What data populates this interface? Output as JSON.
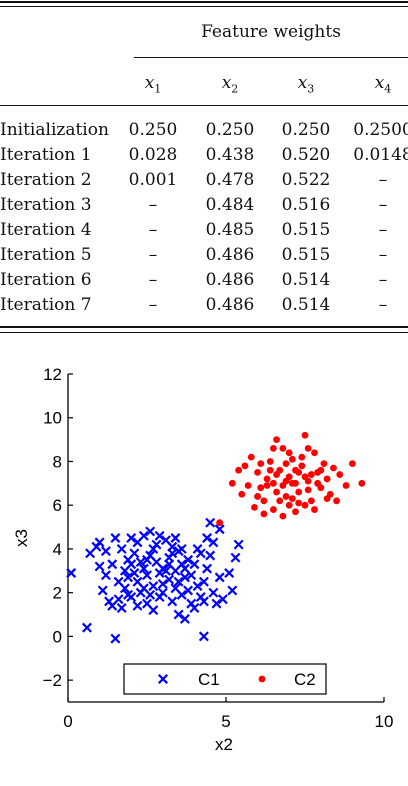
{
  "table": {
    "group_header": "Feature weights",
    "columns": [
      "x1",
      "x2",
      "x3",
      "x4"
    ],
    "rows": [
      {
        "label": "Initialization",
        "values": [
          "0.250",
          "0.250",
          "0.250",
          "0.2500"
        ]
      },
      {
        "label": "Iteration 1",
        "values": [
          "0.028",
          "0.438",
          "0.520",
          "0.0148"
        ]
      },
      {
        "label": "Iteration 2",
        "values": [
          "0.001",
          "0.478",
          "0.522",
          "–"
        ]
      },
      {
        "label": "Iteration 3",
        "values": [
          "–",
          "0.484",
          "0.516",
          "–"
        ]
      },
      {
        "label": "Iteration 4",
        "values": [
          "–",
          "0.485",
          "0.515",
          "–"
        ]
      },
      {
        "label": "Iteration 5",
        "values": [
          "–",
          "0.486",
          "0.515",
          "–"
        ]
      },
      {
        "label": "Iteration 6",
        "values": [
          "–",
          "0.486",
          "0.514",
          "–"
        ]
      },
      {
        "label": "Iteration 7",
        "values": [
          "–",
          "0.486",
          "0.514",
          "–"
        ]
      }
    ]
  },
  "chart_data": {
    "type": "scatter",
    "xlabel": "x2",
    "ylabel": "x3",
    "xlim": [
      0,
      10
    ],
    "ylim": [
      -3,
      12
    ],
    "xticks": [
      0,
      5,
      10
    ],
    "yticks": [
      -2,
      0,
      2,
      4,
      6,
      8,
      10,
      12
    ],
    "legend_placement": "bottom-center",
    "series": [
      {
        "name": "C1",
        "marker": "x",
        "color": "#0000ff",
        "points": [
          [
            0.1,
            2.9
          ],
          [
            0.6,
            0.4
          ],
          [
            1.5,
            -0.1
          ],
          [
            4.3,
            0.0
          ],
          [
            0.7,
            3.8
          ],
          [
            0.9,
            4.1
          ],
          [
            1.0,
            3.2
          ],
          [
            1.2,
            2.8
          ],
          [
            1.1,
            2.1
          ],
          [
            1.3,
            1.6
          ],
          [
            1.4,
            1.4
          ],
          [
            1.6,
            1.7
          ],
          [
            1.8,
            2.2
          ],
          [
            1.9,
            2.7
          ],
          [
            2.0,
            3.3
          ],
          [
            2.1,
            3.8
          ],
          [
            2.2,
            4.3
          ],
          [
            2.4,
            4.6
          ],
          [
            2.6,
            4.8
          ],
          [
            2.3,
            2.0
          ],
          [
            2.5,
            1.5
          ],
          [
            2.7,
            1.2
          ],
          [
            2.9,
            1.8
          ],
          [
            3.0,
            2.4
          ],
          [
            3.1,
            3.0
          ],
          [
            3.2,
            3.6
          ],
          [
            3.3,
            4.1
          ],
          [
            3.4,
            4.5
          ],
          [
            3.5,
            3.9
          ],
          [
            3.6,
            3.3
          ],
          [
            3.7,
            2.7
          ],
          [
            3.8,
            2.1
          ],
          [
            3.9,
            1.5
          ],
          [
            3.7,
            0.8
          ],
          [
            3.5,
            1.0
          ],
          [
            4.0,
            1.3
          ],
          [
            4.2,
            1.8
          ],
          [
            4.3,
            2.5
          ],
          [
            4.4,
            3.1
          ],
          [
            4.5,
            3.7
          ],
          [
            4.6,
            4.3
          ],
          [
            4.5,
            5.2
          ],
          [
            4.8,
            4.9
          ],
          [
            5.4,
            4.2
          ],
          [
            5.3,
            3.6
          ],
          [
            5.1,
            2.9
          ],
          [
            5.2,
            2.1
          ],
          [
            4.9,
            1.7
          ],
          [
            4.7,
            1.5
          ],
          [
            1.5,
            4.5
          ],
          [
            1.7,
            4.0
          ],
          [
            1.9,
            3.5
          ],
          [
            2.0,
            1.8
          ],
          [
            2.2,
            2.5
          ],
          [
            2.4,
            3.1
          ],
          [
            2.6,
            3.7
          ],
          [
            2.8,
            4.2
          ],
          [
            3.0,
            3.1
          ],
          [
            3.2,
            2.6
          ],
          [
            3.4,
            2.2
          ],
          [
            3.6,
            1.9
          ],
          [
            2.9,
            2.9
          ],
          [
            2.7,
            2.3
          ],
          [
            2.5,
            2.8
          ],
          [
            2.3,
            3.4
          ],
          [
            2.1,
            2.9
          ],
          [
            1.8,
            3.0
          ],
          [
            1.6,
            2.5
          ],
          [
            1.4,
            3.3
          ],
          [
            1.2,
            3.9
          ],
          [
            1.0,
            4.3
          ],
          [
            2.0,
            4.5
          ],
          [
            2.8,
            3.4
          ],
          [
            3.1,
            4.4
          ],
          [
            3.3,
            1.6
          ],
          [
            3.8,
            3.5
          ],
          [
            4.1,
            4.0
          ],
          [
            4.3,
            1.6
          ],
          [
            1.7,
            1.3
          ],
          [
            2.6,
            1.9
          ],
          [
            3.0,
            2.0
          ],
          [
            3.4,
            3.0
          ],
          [
            3.6,
            4.0
          ],
          [
            3.9,
            2.8
          ],
          [
            4.1,
            2.3
          ],
          [
            4.4,
            4.5
          ],
          [
            2.2,
            1.4
          ],
          [
            2.4,
            2.2
          ],
          [
            1.9,
            1.9
          ],
          [
            2.5,
            3.5
          ],
          [
            2.7,
            4.0
          ],
          [
            3.2,
            3.3
          ],
          [
            3.5,
            2.5
          ],
          [
            4.0,
            3.3
          ],
          [
            4.2,
            3.8
          ],
          [
            2.9,
            4.6
          ],
          [
            3.3,
            3.8
          ],
          [
            3.7,
            3.1
          ],
          [
            4.6,
            2.0
          ],
          [
            4.8,
            2.7
          ]
        ]
      },
      {
        "name": "C2",
        "marker": "dot",
        "color": "#ff0000",
        "points": [
          [
            4.8,
            5.2
          ],
          [
            5.2,
            7.0
          ],
          [
            5.5,
            6.5
          ],
          [
            5.6,
            7.8
          ],
          [
            5.8,
            8.2
          ],
          [
            6.0,
            7.5
          ],
          [
            6.1,
            6.8
          ],
          [
            6.2,
            6.2
          ],
          [
            6.3,
            7.2
          ],
          [
            6.4,
            8.0
          ],
          [
            6.5,
            8.6
          ],
          [
            6.6,
            9.0
          ],
          [
            6.7,
            7.6
          ],
          [
            6.8,
            6.9
          ],
          [
            6.9,
            6.4
          ],
          [
            7.0,
            7.3
          ],
          [
            7.1,
            8.1
          ],
          [
            7.2,
            7.0
          ],
          [
            7.3,
            6.6
          ],
          [
            7.4,
            7.8
          ],
          [
            7.5,
            9.2
          ],
          [
            7.6,
            7.1
          ],
          [
            7.7,
            6.2
          ],
          [
            7.8,
            8.4
          ],
          [
            7.9,
            7.5
          ],
          [
            8.0,
            6.8
          ],
          [
            8.1,
            7.9
          ],
          [
            8.2,
            7.2
          ],
          [
            8.3,
            6.5
          ],
          [
            8.4,
            7.7
          ],
          [
            8.6,
            7.4
          ],
          [
            8.8,
            6.9
          ],
          [
            9.0,
            7.9
          ],
          [
            9.3,
            7.0
          ],
          [
            5.9,
            5.9
          ],
          [
            6.2,
            5.6
          ],
          [
            6.5,
            5.8
          ],
          [
            6.8,
            5.5
          ],
          [
            7.2,
            5.7
          ],
          [
            7.5,
            6.0
          ],
          [
            7.8,
            5.8
          ],
          [
            6.0,
            6.4
          ],
          [
            6.3,
            6.9
          ],
          [
            6.6,
            7.4
          ],
          [
            6.9,
            7.9
          ],
          [
            7.1,
            6.3
          ],
          [
            7.3,
            7.5
          ],
          [
            7.6,
            6.7
          ],
          [
            7.9,
            7.0
          ],
          [
            8.2,
            6.3
          ],
          [
            6.4,
            7.6
          ],
          [
            6.7,
            6.2
          ],
          [
            7.0,
            8.4
          ],
          [
            7.4,
            8.2
          ],
          [
            7.7,
            7.4
          ],
          [
            8.0,
            7.6
          ],
          [
            6.1,
            7.9
          ],
          [
            5.7,
            6.9
          ],
          [
            6.9,
            7.1
          ],
          [
            7.2,
            7.6
          ],
          [
            7.5,
            7.3
          ],
          [
            6.6,
            6.6
          ],
          [
            7.0,
            6.0
          ],
          [
            7.3,
            6.1
          ],
          [
            8.5,
            6.2
          ],
          [
            5.4,
            7.6
          ],
          [
            6.8,
            8.6
          ],
          [
            7.6,
            8.6
          ],
          [
            6.5,
            7.0
          ],
          [
            7.1,
            7.0
          ]
        ]
      }
    ]
  }
}
